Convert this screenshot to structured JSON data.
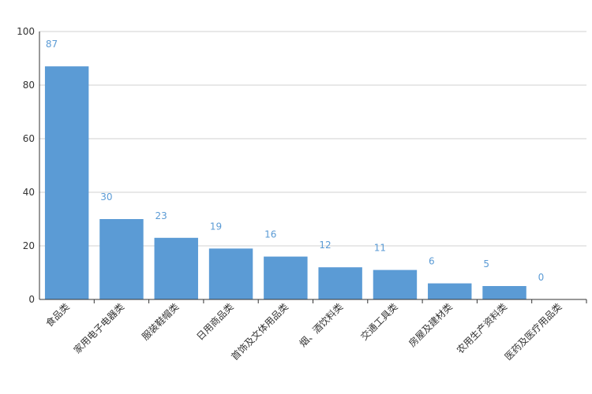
{
  "chart_data": {
    "type": "bar",
    "title": "",
    "xlabel": "",
    "ylabel": "",
    "ylim": [
      0,
      100
    ],
    "yticks": [
      0,
      20,
      40,
      60,
      80,
      100
    ],
    "grid": true,
    "categories": [
      "食品类",
      "家用电子电器类",
      "服装鞋帽类",
      "日用商品类",
      "首饰及文体用品类",
      "烟、酒饮料类",
      "交通工具类",
      "房屋及建材类",
      "农用生产资料类",
      "医药及医疗用品类"
    ],
    "series": [
      {
        "values": [
          87,
          30,
          23,
          19,
          16,
          12,
          11,
          6,
          5,
          0
        ]
      }
    ]
  },
  "colors": {
    "bar": "#5b9bd5",
    "data_label": "#5b9bd5",
    "grid": "#d0d0d0",
    "axis": "#333333"
  }
}
